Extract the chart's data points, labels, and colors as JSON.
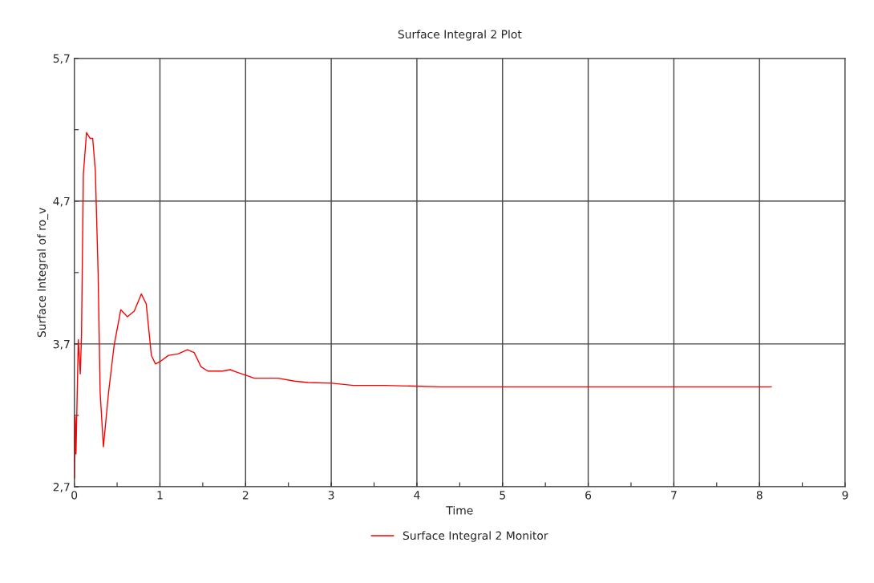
{
  "chart_data": {
    "type": "line",
    "title": "Surface Integral 2 Plot",
    "xlabel": "Time",
    "ylabel": "Surface Integral of ro_v",
    "xlim": [
      0,
      9
    ],
    "ylim": [
      2.7,
      5.7
    ],
    "xticks": [
      0,
      {
        "value": 0.5,
        "label": null
      },
      1,
      {
        "value": 1.5,
        "label": null
      },
      2,
      {
        "value": 2.5,
        "label": null
      },
      3,
      {
        "value": 3.5,
        "label": null
      },
      4,
      {
        "value": 4.5,
        "label": null
      },
      5,
      {
        "value": 5.5,
        "label": null
      },
      6,
      {
        "value": 6.5,
        "label": null
      },
      7,
      {
        "value": 7.5,
        "label": null
      },
      8,
      {
        "value": 8.5,
        "label": null
      },
      9
    ],
    "yticks": [
      {
        "value": 2.7,
        "label": "2,7"
      },
      {
        "value": 3.2,
        "label": null
      },
      {
        "value": 3.7,
        "label": "3,7"
      },
      {
        "value": 4.2,
        "label": null
      },
      {
        "value": 4.7,
        "label": "4,7"
      },
      {
        "value": 5.2,
        "label": null
      },
      {
        "value": 5.7,
        "label": "5,7"
      }
    ],
    "grid": true,
    "legend": "bottom",
    "marker": "none",
    "line_style": "solid",
    "series": [
      {
        "name": "Surface Integral 2 Monitor",
        "color": "#ff0000",
        "x": [
          0.003,
          0.012,
          0.02,
          0.035,
          0.047,
          0.07,
          0.084,
          0.106,
          0.143,
          0.184,
          0.215,
          0.246,
          0.278,
          0.302,
          0.34,
          0.4,
          0.465,
          0.543,
          0.62,
          0.7,
          0.783,
          0.84,
          0.9,
          0.948,
          1.01,
          1.1,
          1.21,
          1.32,
          1.4,
          1.48,
          1.56,
          1.73,
          1.82,
          1.91,
          2.01,
          2.1,
          2.38,
          2.57,
          2.73,
          3.01,
          3.26,
          3.63,
          4.28,
          8.14
        ],
        "values": [
          2.76,
          3.19,
          2.93,
          3.38,
          3.73,
          3.49,
          3.75,
          4.89,
          5.18,
          5.14,
          5.14,
          4.91,
          4.2,
          3.36,
          2.98,
          3.36,
          3.69,
          3.94,
          3.89,
          3.93,
          4.05,
          3.98,
          3.62,
          3.56,
          3.58,
          3.62,
          3.63,
          3.66,
          3.64,
          3.54,
          3.51,
          3.51,
          3.52,
          3.5,
          3.48,
          3.46,
          3.46,
          3.44,
          3.43,
          3.425,
          3.41,
          3.41,
          3.4,
          3.4
        ]
      }
    ]
  }
}
